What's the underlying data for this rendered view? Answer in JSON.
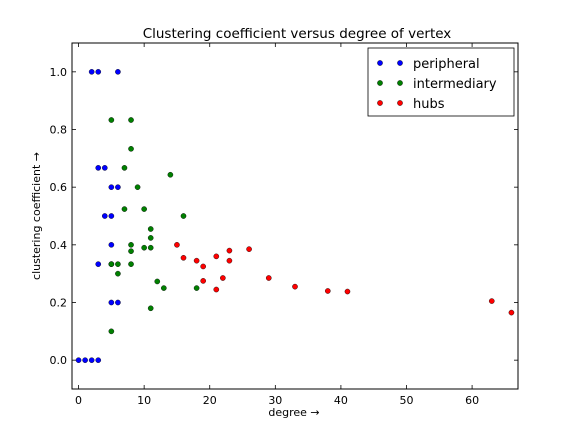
{
  "chart_data": {
    "type": "scatter",
    "title": "Clustering coefficient versus degree of vertex",
    "xlabel": "degree →",
    "ylabel": "clustering coefficient →",
    "xlim": [
      -1,
      67
    ],
    "ylim": [
      -0.1,
      1.1
    ],
    "xticks": [
      0,
      10,
      20,
      30,
      40,
      50,
      60
    ],
    "yticks": [
      0.0,
      0.2,
      0.4,
      0.6,
      0.8,
      1.0
    ],
    "xtick_labels": [
      "0",
      "10",
      "20",
      "30",
      "40",
      "50",
      "60"
    ],
    "ytick_labels": [
      "0.0",
      "0.2",
      "0.4",
      "0.6",
      "0.8",
      "1.0"
    ],
    "grid": false,
    "legend_position": "top-right",
    "series": [
      {
        "name": "peripheral",
        "color": "#0000ff",
        "points": [
          [
            0,
            0.0
          ],
          [
            1,
            0.0
          ],
          [
            2,
            0.0
          ],
          [
            3,
            0.0
          ],
          [
            2,
            1.0
          ],
          [
            3,
            1.0
          ],
          [
            6,
            1.0
          ],
          [
            3,
            0.667
          ],
          [
            4,
            0.667
          ],
          [
            5,
            0.6
          ],
          [
            6,
            0.6
          ],
          [
            4,
            0.5
          ],
          [
            5,
            0.5
          ],
          [
            5,
            0.4
          ],
          [
            3,
            0.333
          ],
          [
            5,
            0.333
          ],
          [
            5,
            0.2
          ],
          [
            6,
            0.2
          ]
        ]
      },
      {
        "name": "intermediary",
        "color": "#008000",
        "points": [
          [
            5,
            0.833
          ],
          [
            8,
            0.833
          ],
          [
            8,
            0.733
          ],
          [
            7,
            0.667
          ],
          [
            14,
            0.643
          ],
          [
            9,
            0.6
          ],
          [
            7,
            0.524
          ],
          [
            10,
            0.524
          ],
          [
            16,
            0.5
          ],
          [
            11,
            0.455
          ],
          [
            11,
            0.424
          ],
          [
            8,
            0.4
          ],
          [
            10,
            0.39
          ],
          [
            11,
            0.39
          ],
          [
            8,
            0.378
          ],
          [
            5,
            0.333
          ],
          [
            6,
            0.333
          ],
          [
            8,
            0.333
          ],
          [
            6,
            0.3
          ],
          [
            12,
            0.273
          ],
          [
            13,
            0.25
          ],
          [
            18,
            0.25
          ],
          [
            11,
            0.18
          ],
          [
            5,
            0.1
          ]
        ]
      },
      {
        "name": "hubs",
        "color": "#ff0000",
        "points": [
          [
            15,
            0.4
          ],
          [
            16,
            0.355
          ],
          [
            18,
            0.345
          ],
          [
            19,
            0.325
          ],
          [
            21,
            0.36
          ],
          [
            22,
            0.285
          ],
          [
            23,
            0.38
          ],
          [
            23,
            0.345
          ],
          [
            26,
            0.385
          ],
          [
            19,
            0.275
          ],
          [
            21,
            0.245
          ],
          [
            29,
            0.285
          ],
          [
            33,
            0.255
          ],
          [
            38,
            0.24
          ],
          [
            41,
            0.238
          ],
          [
            63,
            0.205
          ],
          [
            66,
            0.165
          ]
        ]
      }
    ]
  }
}
